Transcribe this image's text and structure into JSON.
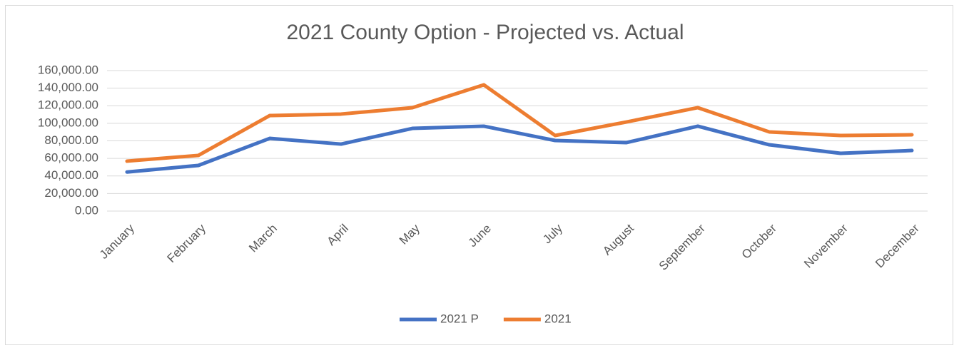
{
  "chart_data": {
    "type": "line",
    "title": "2021 County Option - Projected vs. Actual",
    "categories": [
      "January",
      "February",
      "March",
      "April",
      "May",
      "June",
      "July",
      "August",
      "September",
      "October",
      "November",
      "December"
    ],
    "series": [
      {
        "name": "2021 P",
        "color": "#4472c4",
        "values": [
          44500,
          52000,
          82800,
          76300,
          94200,
          96700,
          80400,
          78000,
          96700,
          75500,
          65800,
          69000
        ]
      },
      {
        "name": "2021",
        "color": "#ed7d31",
        "values": [
          56900,
          63400,
          108800,
          110500,
          117800,
          143800,
          86100,
          101500,
          117800,
          90200,
          86100,
          86900
        ]
      }
    ],
    "ylim": [
      0,
      160000
    ],
    "yticks": [
      {
        "value": 0,
        "label": "0.00"
      },
      {
        "value": 20000,
        "label": "20,000.00"
      },
      {
        "value": 40000,
        "label": "40,000.00"
      },
      {
        "value": 60000,
        "label": "60,000.00"
      },
      {
        "value": 80000,
        "label": "80,000.00"
      },
      {
        "value": 100000,
        "label": "100,000.00"
      },
      {
        "value": 120000,
        "label": "120,000.00"
      },
      {
        "value": 140000,
        "label": "140,000.00"
      },
      {
        "value": 160000,
        "label": "160,000.00"
      }
    ],
    "grid": true,
    "legend": "bottom"
  }
}
